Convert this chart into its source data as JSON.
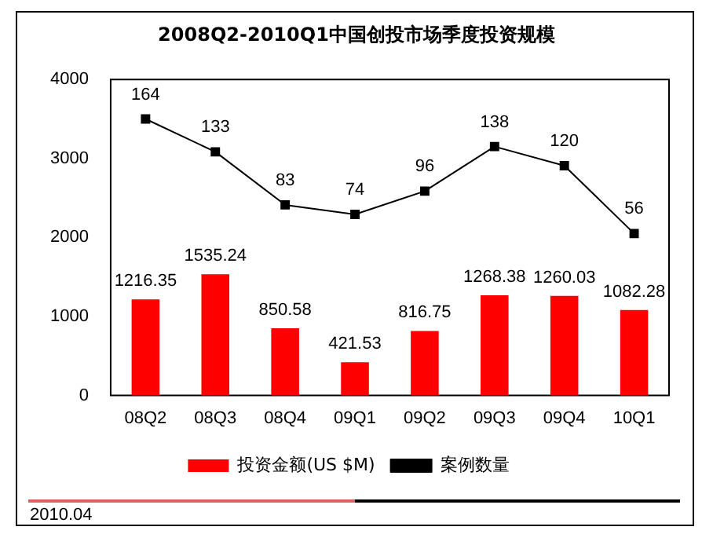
{
  "chart_data": {
    "type": "bar",
    "title": "2008Q2-2010Q1中国创投市场季度投资规模",
    "categories": [
      "08Q2",
      "08Q3",
      "08Q4",
      "09Q1",
      "09Q2",
      "09Q3",
      "09Q4",
      "10Q1"
    ],
    "series": [
      {
        "name": "投资金额(US $M)",
        "color": "#ff0000",
        "values": [
          1216.35,
          1535.24,
          850.58,
          421.53,
          816.75,
          1268.38,
          1260.03,
          1082.28
        ]
      },
      {
        "name": "案例数量",
        "type": "line",
        "axis": "y2",
        "color": "#000000",
        "values": [
          164,
          133,
          83,
          74,
          96,
          138,
          120,
          56
        ]
      }
    ],
    "ylim": [
      0,
      4000
    ],
    "yticks": [
      0,
      1000,
      2000,
      3000,
      4000
    ],
    "grid": false,
    "legend": "bottom",
    "marker": "square",
    "data_labels": true,
    "annotations": [
      "2010.04"
    ]
  }
}
